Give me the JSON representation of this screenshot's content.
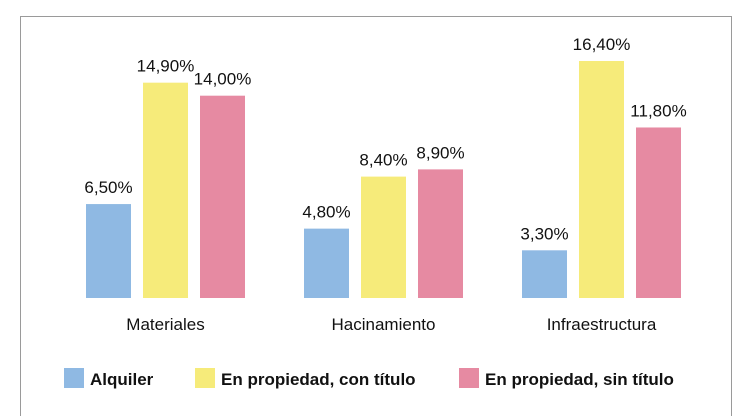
{
  "chart_data": {
    "type": "bar",
    "title": "",
    "categories": [
      "Materiales",
      "Hacinamiento",
      "Infraestructura"
    ],
    "series": [
      {
        "name": "Alquiler",
        "color": "#8fb9e3",
        "values": [
          6.5,
          4.8,
          3.3
        ],
        "labels": [
          "6,50%",
          "4,80%",
          "3,30%"
        ]
      },
      {
        "name": "En propiedad, con título",
        "color": "#f6eb7a",
        "values": [
          14.9,
          8.4,
          16.4
        ],
        "labels": [
          "14,90%",
          "8,40%",
          "16,40%"
        ]
      },
      {
        "name": "En propiedad, sin título",
        "color": "#e68aa2",
        "values": [
          14.0,
          8.9,
          11.8
        ],
        "labels": [
          "14,00%",
          "8,90%",
          "11,80%"
        ]
      }
    ],
    "xlabel": "",
    "ylabel": "",
    "ylim": [
      0,
      16.4
    ],
    "grid": false,
    "legend": "bottom"
  }
}
